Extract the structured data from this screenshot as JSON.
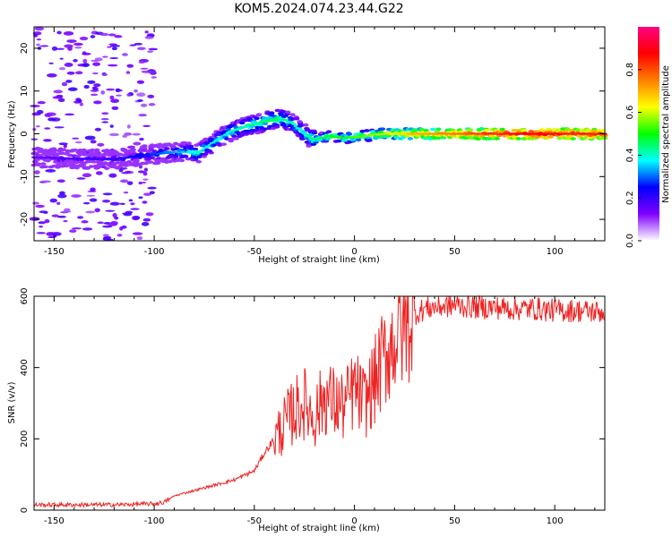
{
  "title": "KOM5.2024.074.23.44.G22",
  "chart_data": [
    {
      "type": "heatmap",
      "title": "",
      "xlabel": "Height of straight line (km)",
      "ylabel": "Frequency (Hz)",
      "xlim": [
        -160,
        125
      ],
      "ylim": [
        -25,
        25
      ],
      "xticks": [
        -150,
        -100,
        -50,
        0,
        50,
        100
      ],
      "yticks": [
        -20,
        -10,
        0,
        10,
        20
      ],
      "colorbar": {
        "label": "Normalized spectral amplitude",
        "range": [
          0,
          1
        ],
        "ticks": [
          "0.0",
          "0.2",
          "0.4",
          "0.6",
          "0.8"
        ],
        "colors": [
          "#ffffff",
          "#8000ff",
          "#0000ff",
          "#00ffff",
          "#00ff00",
          "#ffff00",
          "#ff8000",
          "#ff0000",
          "#ff0080"
        ]
      },
      "ridge": [
        {
          "x": -160,
          "y": -5.5,
          "amp": 0.15
        },
        {
          "x": -140,
          "y": -5.8,
          "amp": 0.18
        },
        {
          "x": -120,
          "y": -6.0,
          "amp": 0.2
        },
        {
          "x": -105,
          "y": -5.0,
          "amp": 0.25
        },
        {
          "x": -95,
          "y": -4.5,
          "amp": 0.3
        },
        {
          "x": -85,
          "y": -4.2,
          "amp": 0.35
        },
        {
          "x": -78,
          "y": -4.5,
          "amp": 0.4
        },
        {
          "x": -70,
          "y": -2.0,
          "amp": 0.38
        },
        {
          "x": -62,
          "y": 0.5,
          "amp": 0.4
        },
        {
          "x": -52,
          "y": 2.0,
          "amp": 0.42
        },
        {
          "x": -45,
          "y": 2.8,
          "amp": 0.45
        },
        {
          "x": -38,
          "y": 3.5,
          "amp": 0.45
        },
        {
          "x": -32,
          "y": 3.0,
          "amp": 0.42
        },
        {
          "x": -26,
          "y": 0.5,
          "amp": 0.38
        },
        {
          "x": -20,
          "y": -1.5,
          "amp": 0.45
        },
        {
          "x": -12,
          "y": -0.5,
          "amp": 0.5
        },
        {
          "x": -5,
          "y": -1.0,
          "amp": 0.5
        },
        {
          "x": 5,
          "y": -0.5,
          "amp": 0.55
        },
        {
          "x": 15,
          "y": 0.0,
          "amp": 0.6
        },
        {
          "x": 30,
          "y": 0.0,
          "amp": 0.7
        },
        {
          "x": 45,
          "y": 0.0,
          "amp": 0.75
        },
        {
          "x": 60,
          "y": 0.0,
          "amp": 0.8
        },
        {
          "x": 75,
          "y": 0.0,
          "amp": 0.85
        },
        {
          "x": 90,
          "y": 0.0,
          "amp": 0.9
        },
        {
          "x": 110,
          "y": 0.0,
          "amp": 0.85
        },
        {
          "x": 125,
          "y": 0.0,
          "amp": 0.85
        }
      ]
    },
    {
      "type": "line",
      "title": "",
      "xlabel": "Height of straight line (km)",
      "ylabel": "SNR (v/v)",
      "xlim": [
        -160,
        125
      ],
      "ylim": [
        0,
        600
      ],
      "xticks": [
        -150,
        -100,
        -50,
        0,
        50,
        100
      ],
      "yticks": [
        0,
        200,
        400,
        600
      ],
      "series": [
        {
          "color": "#ee2222",
          "x": [
            -160,
            -140,
            -120,
            -100,
            -95,
            -90,
            -80,
            -70,
            -60,
            -50,
            -45,
            -40,
            -35,
            -30,
            -25,
            -20,
            -15,
            -10,
            -5,
            0,
            5,
            10,
            15,
            20,
            25,
            30,
            35,
            40,
            50,
            60,
            70,
            80,
            90,
            100,
            110,
            125
          ],
          "values": [
            15,
            15,
            15,
            18,
            22,
            40,
            55,
            70,
            85,
            110,
            160,
            200,
            240,
            280,
            300,
            260,
            320,
            300,
            290,
            340,
            300,
            360,
            430,
            480,
            520,
            550,
            565,
            570,
            575,
            570,
            568,
            565,
            565,
            560,
            560,
            555
          ]
        }
      ]
    }
  ]
}
